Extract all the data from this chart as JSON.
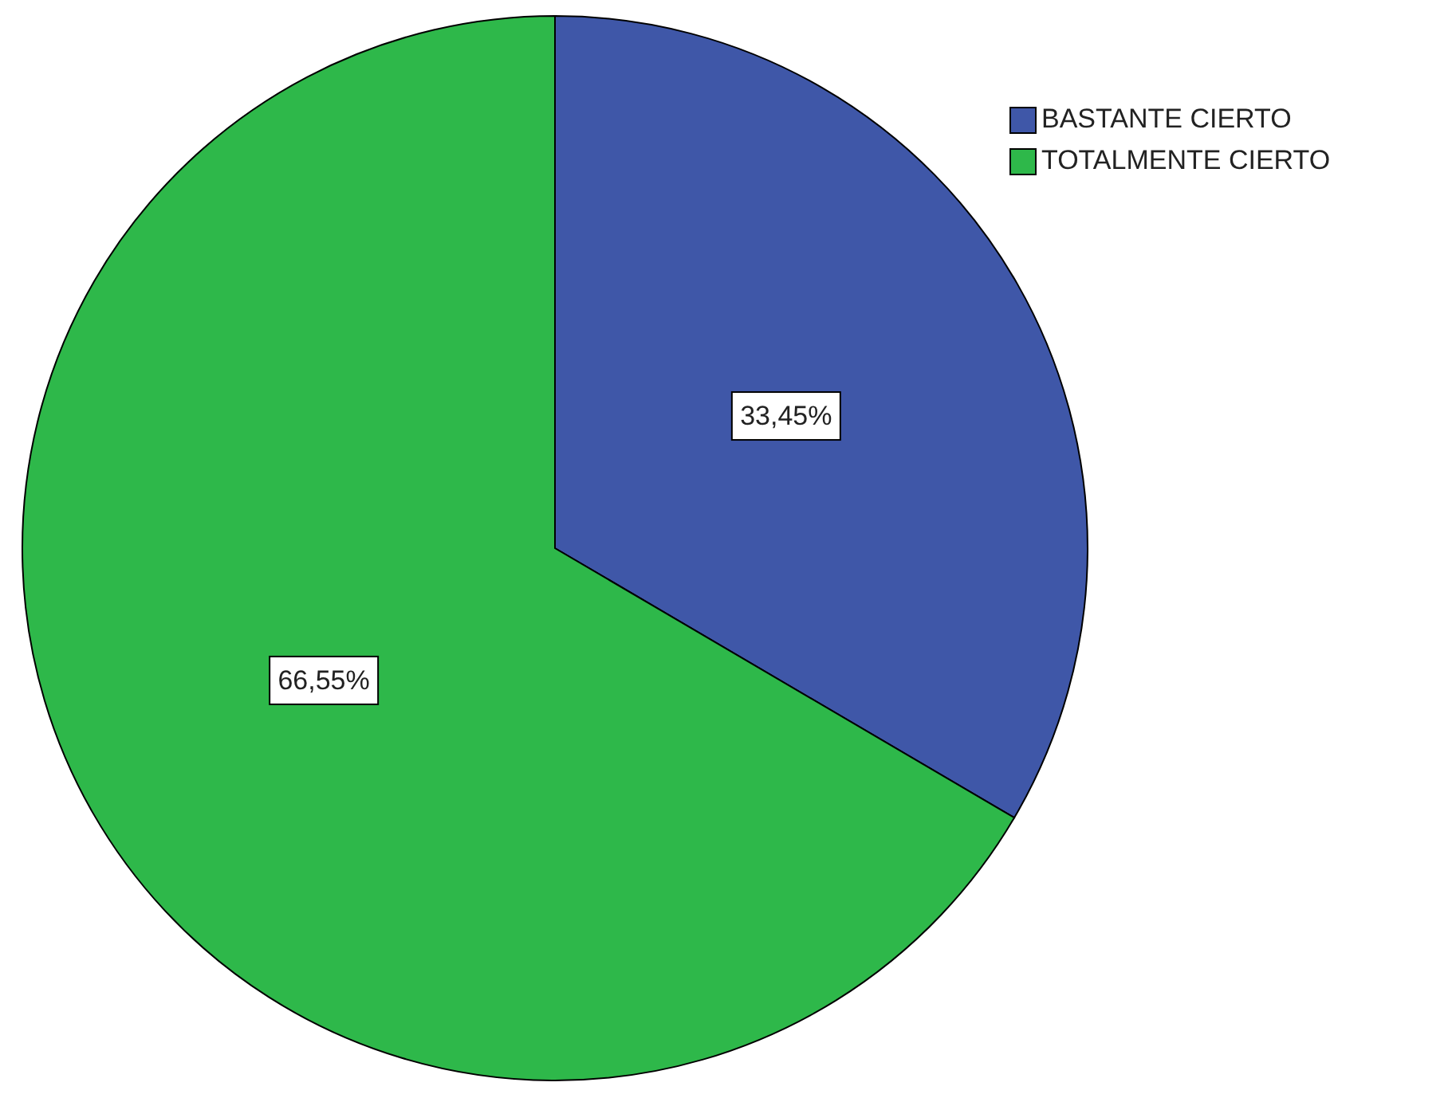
{
  "chart_data": {
    "type": "pie",
    "categories": [
      "BASTANTE CIERTO",
      "TOTALMENTE CIERTO"
    ],
    "values": [
      33.45,
      66.55
    ],
    "colors": [
      "#3f57a8",
      "#2eb84a"
    ],
    "value_labels": [
      "33,45%",
      "66,55%"
    ],
    "legend": "top right"
  }
}
